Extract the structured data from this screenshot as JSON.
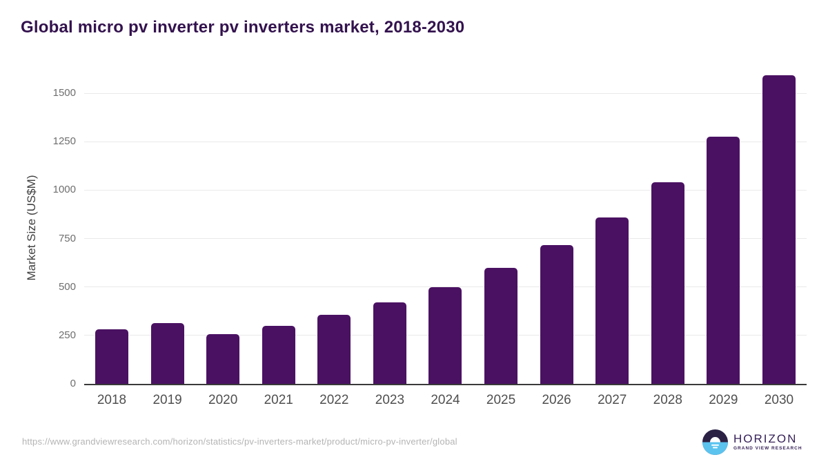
{
  "page": {
    "title": "Global micro pv inverter pv inverters market, 2018-2030"
  },
  "chart_data": {
    "type": "bar",
    "title": "Global micro pv inverter pv inverters market, 2018-2030",
    "categories": [
      "2018",
      "2019",
      "2020",
      "2021",
      "2022",
      "2023",
      "2024",
      "2025",
      "2026",
      "2027",
      "2028",
      "2029",
      "2030"
    ],
    "values": [
      283,
      313,
      257,
      300,
      357,
      422,
      500,
      600,
      716,
      858,
      1042,
      1277,
      1591
    ],
    "xlabel": "",
    "ylabel": "Market Size (US$M)",
    "ylim": [
      0,
      1500
    ],
    "yticks": [
      0,
      250,
      500,
      750,
      1000,
      1250,
      1500
    ],
    "grid": "horizontal-light",
    "legend_position": "none",
    "bar_color": "#4a1162"
  },
  "footer": {
    "source_url": "https://www.grandviewresearch.com/horizon/statistics/pv-inverters-market/product/micro-pv-inverter/global",
    "logo": {
      "name": "HORIZON",
      "tagline": "GRAND VIEW RESEARCH"
    }
  },
  "colors": {
    "bar": "#4a1162",
    "title": "#33124e",
    "gridline": "#e9e9e9",
    "axis_line": "#3a3a3a",
    "y_tick_text": "#6e6e6e",
    "x_tick_text": "#4f4f4f",
    "url_text": "#b4b4b4",
    "logo_purple": "#352057",
    "logo_navy": "#2b2145",
    "logo_blue": "#5cc3ef"
  }
}
